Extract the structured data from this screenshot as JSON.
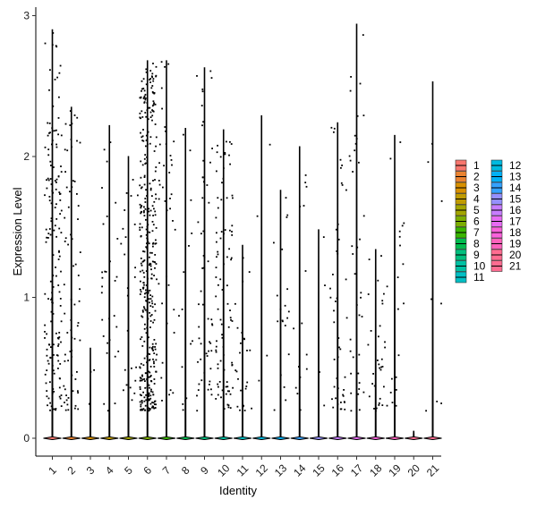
{
  "chart_data": {
    "type": "violin-jitter",
    "xlabel": "Identity",
    "ylabel": "Expression Level",
    "ylim": [
      -0.12,
      3.08
    ],
    "yticks": [
      0,
      1,
      2,
      3
    ],
    "categories": [
      "1",
      "2",
      "3",
      "4",
      "5",
      "6",
      "7",
      "8",
      "9",
      "10",
      "11",
      "12",
      "13",
      "14",
      "15",
      "16",
      "17",
      "18",
      "19",
      "20",
      "21"
    ],
    "colors": [
      "#F8766D",
      "#EA8331",
      "#D89000",
      "#C09B00",
      "#A3A500",
      "#7CAE00",
      "#39B600",
      "#00BB4E",
      "#00BF7D",
      "#00C1A3",
      "#00BFC4",
      "#00BAE0",
      "#00B0F6",
      "#35A2FF",
      "#9590FF",
      "#C77CFF",
      "#E76BF3",
      "#FA62DB",
      "#FF62BC",
      "#FF6C91",
      "#FF6C91"
    ],
    "max_values": [
      2.9,
      2.35,
      0.64,
      2.22,
      2.0,
      2.68,
      2.68,
      2.2,
      2.63,
      2.19,
      1.37,
      2.29,
      1.76,
      2.07,
      1.48,
      2.24,
      2.94,
      1.34,
      2.15,
      0.05,
      2.53
    ],
    "point_density": [
      160,
      70,
      4,
      30,
      24,
      380,
      40,
      15,
      55,
      90,
      25,
      4,
      20,
      15,
      4,
      45,
      38,
      32,
      20,
      0,
      8
    ],
    "legend": {
      "columns": [
        [
          "1",
          "2",
          "3",
          "4",
          "5",
          "6",
          "7",
          "8",
          "9",
          "10",
          "11"
        ],
        [
          "12",
          "13",
          "14",
          "15",
          "16",
          "17",
          "18",
          "19",
          "20",
          "21"
        ]
      ]
    }
  }
}
